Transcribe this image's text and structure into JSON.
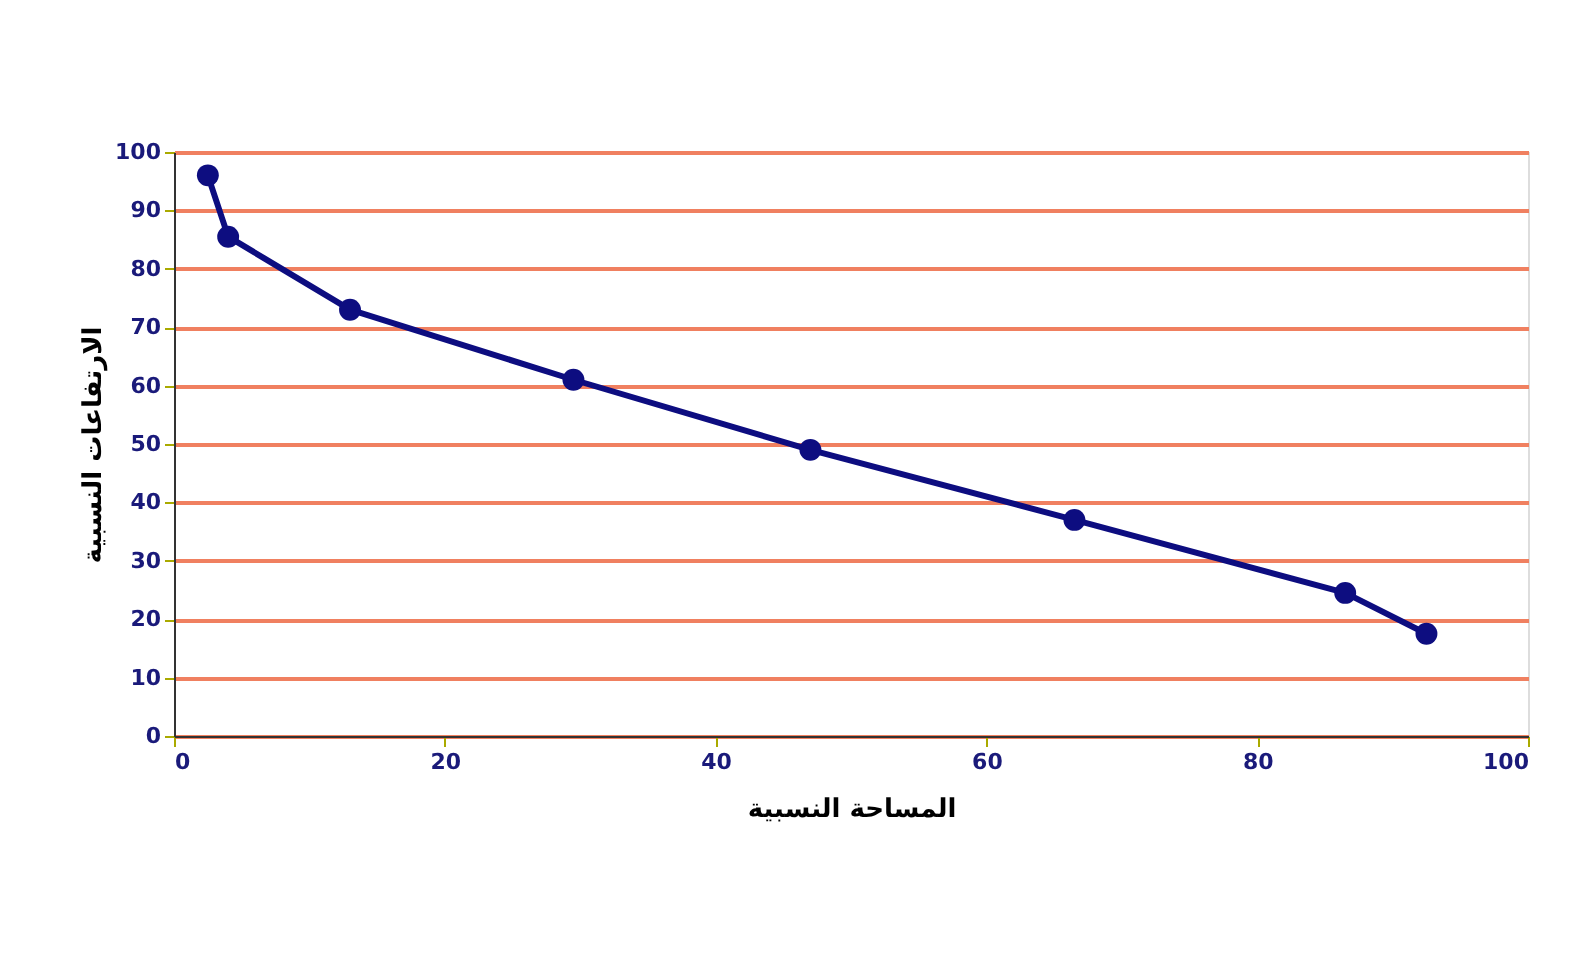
{
  "chart_data": {
    "type": "line",
    "xlabel": "المساحة النسبية",
    "ylabel": "الارتفاعات النسبية",
    "x": [
      2.5,
      4,
      13,
      29.5,
      47,
      66.5,
      86.5,
      92.5
    ],
    "series": [
      {
        "color": "#0d0d80",
        "values": [
          96,
          85.5,
          73,
          61,
          49,
          37,
          24.5,
          17.5
        ]
      }
    ],
    "xlim": [
      0,
      100
    ],
    "xticks": [
      0,
      20,
      40,
      60,
      80,
      100
    ],
    "ylim": [
      0,
      100
    ],
    "yticks": [
      0,
      10,
      20,
      30,
      40,
      50,
      60,
      70,
      80,
      90,
      100
    ],
    "grid": "y",
    "marker": "circle",
    "line_style": "solid"
  }
}
